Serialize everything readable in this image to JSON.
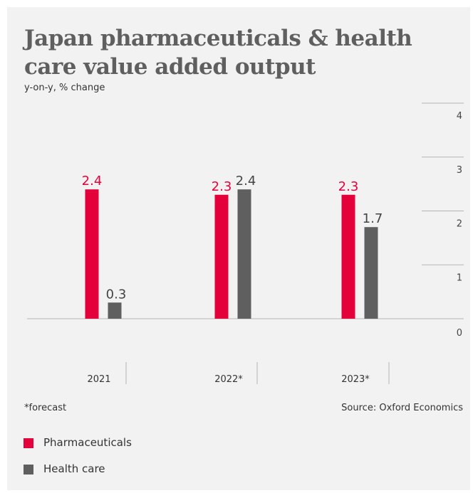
{
  "title": "Japan pharmaceuticals & health care value added output",
  "subtitle": "y-on-y, % change",
  "footnote": "*forecast",
  "source": "Source: Oxford Economics",
  "colors": {
    "pharma": "#e4003b",
    "health": "#5f5f5f",
    "background": "#f2f2f2",
    "text": "#333333"
  },
  "legend": [
    {
      "label": "Pharmaceuticals"
    },
    {
      "label": "Health care"
    }
  ],
  "chart_data": {
    "type": "bar",
    "categories": [
      "2021",
      "2022*",
      "2023*"
    ],
    "series": [
      {
        "name": "Pharmaceuticals",
        "values": [
          2.4,
          2.3,
          2.3
        ]
      },
      {
        "name": "Health care",
        "values": [
          0.3,
          2.4,
          1.7
        ]
      }
    ],
    "data_labels": [
      [
        "2.4",
        "2.3",
        "2.3"
      ],
      [
        "0.3",
        "2.4",
        "1.7"
      ]
    ],
    "yticks": [
      0,
      1,
      2,
      3,
      4
    ],
    "ylim": [
      0,
      4
    ],
    "axis_side": "right",
    "legend_position": "bottom-left"
  }
}
